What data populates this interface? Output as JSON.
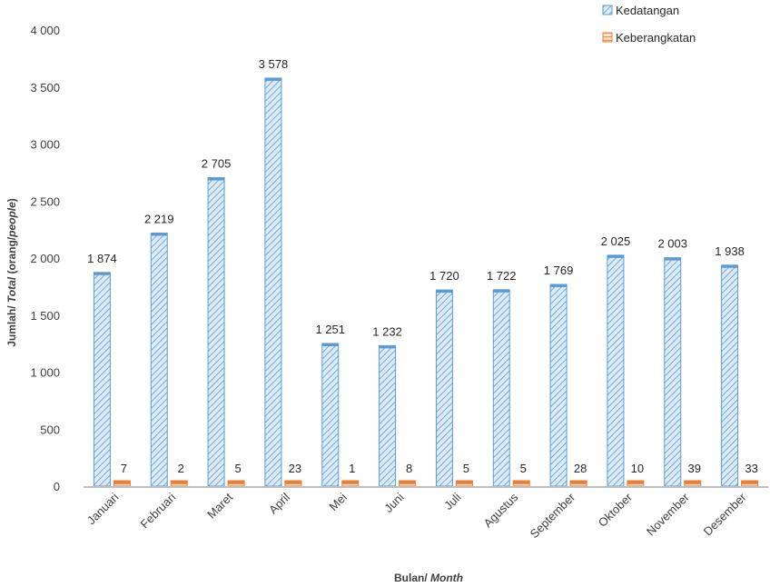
{
  "chart_data": {
    "type": "bar",
    "categories": [
      "Januari",
      "Februari",
      "Maret",
      "April",
      "Mei",
      "Juni",
      "Juli",
      "Agustus",
      "September",
      "Oktober",
      "November",
      "Desember"
    ],
    "series": [
      {
        "name": "Kedatangan",
        "values": [
          1874,
          2219,
          2705,
          3578,
          1251,
          1232,
          1720,
          1722,
          1769,
          2025,
          2003,
          1938
        ],
        "color": "#5B9BD5"
      },
      {
        "name": "Keberangkatan",
        "values": [
          7,
          2,
          5,
          23,
          1,
          8,
          5,
          5,
          28,
          10,
          39,
          33
        ],
        "color": "#ED7D31"
      }
    ],
    "data_labels": {
      "series_0": [
        "1 874",
        "2 219",
        "2 705",
        "3 578",
        "1 251",
        "1 232",
        "1 720",
        "1 722",
        "1 769",
        "2 025",
        "2 003",
        "1 938"
      ],
      "series_1": [
        "7",
        "2",
        "5",
        "23",
        "1",
        "8",
        "5",
        "5",
        "28",
        "10",
        "39",
        "33"
      ]
    },
    "ylim": [
      0,
      4000
    ],
    "yticks": [
      0,
      500,
      1000,
      1500,
      2000,
      2500,
      3000,
      3500,
      4000
    ],
    "ytick_labels": [
      "0",
      "500",
      "1 000",
      "1 500",
      "2 000",
      "2 500",
      "3 000",
      "3 500",
      "4 000"
    ],
    "ylabel": {
      "main": "Jumlah/ ",
      "italic": "Total",
      "suffix_main": "  (orang/",
      "suffix_italic": "people",
      "close": ")"
    },
    "xlabel": {
      "main": "Bulan/ ",
      "italic": "Month"
    },
    "legend_position": "top-right",
    "grid": false
  }
}
